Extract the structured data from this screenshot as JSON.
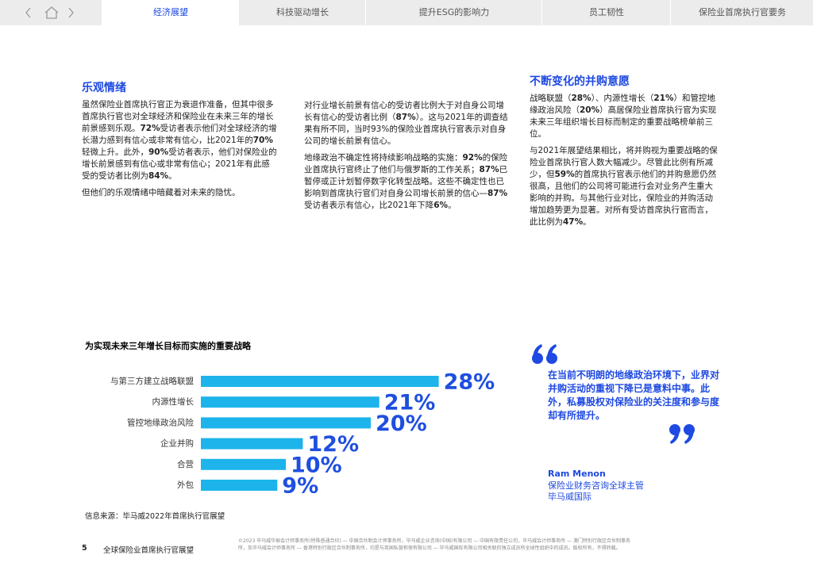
{
  "nav": {
    "tabs": [
      "经济展望",
      "科技驱动增长",
      "提升ESG的影响力",
      "员工韧性",
      "保险业首席执行官要务"
    ],
    "active_tab": 0
  },
  "columns": [
    {
      "heading": "乐观情绪",
      "paragraphs": [
        [
          "虽然保险业首席执行官正为衰退作准备，但其中很多首席执行官也对全球经济和保险业在未来三年的增长前景感到乐观。",
          "72%",
          "受访者表示他们对全球经济的增长潜力感到有信心或非常有信心，比2021年的",
          "70%",
          "轻微上升。此外，",
          "90%",
          "受访者表示，他们对保险业的增长前景感到有信心或非常有信心；2021年有此感受的受访者比例为",
          "84%",
          "。"
        ],
        [
          "但他们的乐观情绪中暗藏着对未来的隐忧。"
        ]
      ]
    },
    {
      "paragraphs": [
        [
          "对行业增长前景有信心的受访者比例大于对自身公司增长有信心的受访者比例（",
          "87%",
          "）。这与2021年的调查结果有所不同，当时93%的保险业首席执行官表示对自身公司的增长前景有信心。"
        ],
        [
          "地缘政治不确定性将持续影响战略的实施：",
          "92%",
          "的保险业首席执行官终止了他们与俄罗斯的工作关系；",
          "87%",
          "已暂停或正计划暂停数字化转型战略。这些不确定性也已影响到首席执行官们对自身公司增长前景的信心—",
          "87%",
          "受访者表示有信心，比2021年下降",
          "6%",
          "。"
        ]
      ]
    },
    {
      "heading": "不断变化的并购意愿",
      "paragraphs": [
        [
          "战略联盟（",
          "28%",
          "）、内源性增长（",
          "21%",
          "）和管控地缘政治风险（",
          "20%",
          "）高居保险业首席执行官为实现未来三年组织增长目标而制定的重要战略榜单前三位。"
        ],
        [
          "与2021年展望结果相比，将并购视为重要战略的保险业首席执行官人数大幅减少。尽管此比例有所减少，但",
          "59%",
          "的首席执行官表示他们的并购意愿仍然很高，且他们的公司将可能进行会对业务产生重大影响的并购。与其他行业对比，保险业的并购活动增加趋势更为显著。对所有受访首席执行官而言，此比例为",
          "47%",
          "。"
        ]
      ]
    }
  ],
  "chart_data": {
    "type": "bar",
    "orientation": "horizontal",
    "title": "为实现未来三年增长目标而实施的重要战略",
    "categories": [
      "与第三方建立战略联盟",
      "内源性增长",
      "管控地缘政治风险",
      "企业并购",
      "合营",
      "外包"
    ],
    "values": [
      28,
      21,
      20,
      12,
      10,
      9
    ],
    "value_labels": [
      "28%",
      "21%",
      "20%",
      "12%",
      "10%",
      "9%"
    ],
    "color": "#1cb4ea",
    "label_color": "#1f4fe0"
  },
  "source": "信息来源：毕马威2022年首席执行官展望",
  "quote": {
    "text": "在当前不明朗的地缘政治环境下，业界对并购活动的重视下降已是意料中事。此外，私募股权对保险业的关注度和参与度却有所提升。",
    "name": "Ram Menon",
    "title_lines": [
      "保险业财务咨询全球主管",
      "毕马威国际"
    ]
  },
  "footer": {
    "page": 5,
    "title": "全球保险业首席执行官展望",
    "legal": "©2023 毕马威华振会计师事务所(特殊普通合伙) — 中国合伙制会计师事务所，毕马威企业咨询(中国)有限公司 — 中国有限责任公司，毕马威会计师事务所 — 澳门特别行政区合伙制事务所，及毕马威会计师事务所 — 香港特别行政区合伙制事务所，均是与英国私营担保有限公司 — 毕马威国际有限公司相关联的独立成员所全球性组织中的成员。版权所有，不得转载。"
  }
}
